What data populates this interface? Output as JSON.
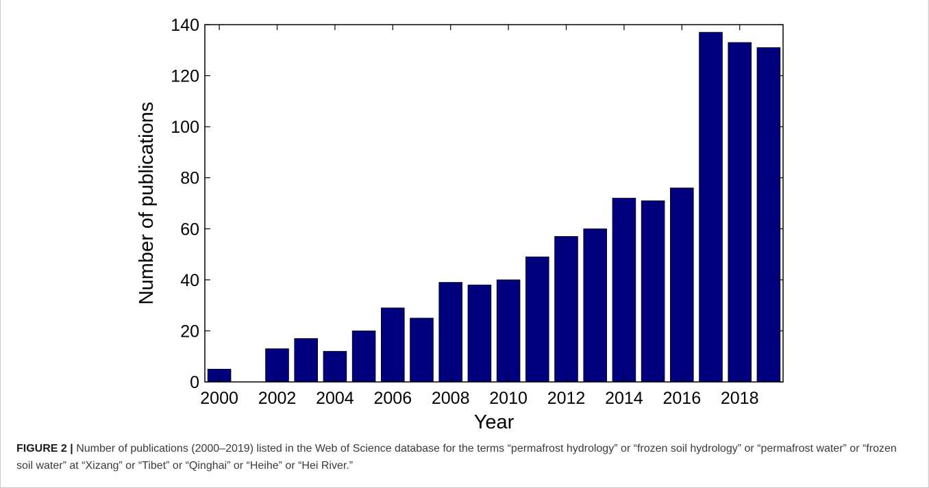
{
  "chart_data": {
    "type": "bar",
    "title": "",
    "xlabel": "Year",
    "ylabel": "Number of publications",
    "categories": [
      2000,
      2001,
      2002,
      2003,
      2004,
      2005,
      2006,
      2007,
      2008,
      2009,
      2010,
      2011,
      2012,
      2013,
      2014,
      2015,
      2016,
      2017,
      2018,
      2019
    ],
    "values": [
      5,
      0,
      13,
      17,
      12,
      20,
      29,
      25,
      39,
      38,
      40,
      49,
      57,
      60,
      72,
      71,
      76,
      137,
      133,
      131
    ],
    "x_tick_labels": [
      "2000",
      "2002",
      "2004",
      "2006",
      "2008",
      "2010",
      "2012",
      "2014",
      "2016",
      "2018"
    ],
    "y_tick_labels": [
      "0",
      "20",
      "40",
      "60",
      "80",
      "100",
      "120",
      "140"
    ],
    "ylim": [
      0,
      140
    ],
    "xlim": [
      1999.5,
      2019.5
    ],
    "bar_color": "#00007f",
    "grid": false,
    "legend": "none"
  },
  "caption": {
    "label": "FIGURE 2",
    "separator": "|",
    "text": "Number of publications (2000–2019) listed in the Web of Science database for the terms “permafrost hydrology” or “frozen soil hydrology” or “permafrost water” or “frozen soil water” at “Xizang” or “Tibet” or “Qinghai” or “Heihe” or “Hei River.”"
  }
}
